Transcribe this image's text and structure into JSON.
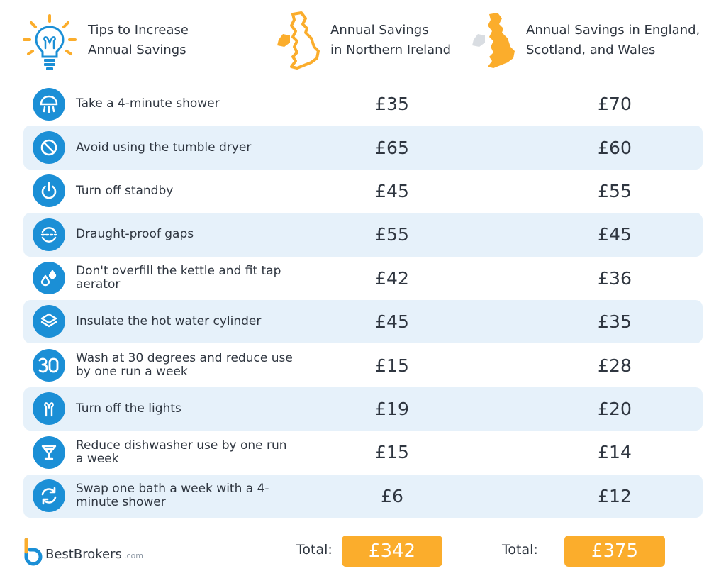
{
  "header": {
    "col1_line1": "Tips to Increase",
    "col1_line2": "Annual Savings",
    "col2_line1": "Annual Savings",
    "col2_line2": "in Northern Ireland",
    "col3_line1": "Annual Savings in England,",
    "col3_line2": "Scotland, and Wales"
  },
  "colors": {
    "accent_blue": "#1b8fd6",
    "row_alt": "#e6f1fa",
    "orange": "#fbad2c"
  },
  "rows": [
    {
      "icon": "shower-icon",
      "tip": "Take a 4-minute shower",
      "ni": "£35",
      "gb": "£70"
    },
    {
      "icon": "prohibited-icon",
      "tip": "Avoid using the tumble dryer",
      "ni": "£65",
      "gb": "£60"
    },
    {
      "icon": "power-icon",
      "tip": "Turn off standby",
      "ni": "£45",
      "gb": "£55"
    },
    {
      "icon": "draught-icon",
      "tip": "Draught-proof gaps",
      "ni": "£55",
      "gb": "£45"
    },
    {
      "icon": "droplets-icon",
      "tip": "Don't overfill the kettle and fit tap aerator",
      "ni": "£42",
      "gb": "£36"
    },
    {
      "icon": "layers-icon",
      "tip": "Insulate the hot water cylinder",
      "ni": "£45",
      "gb": "£35"
    },
    {
      "icon": "thirty-degrees-icon",
      "tip": "Wash at 30 degrees and reduce use by one run a week",
      "ni": "£15",
      "gb": "£28"
    },
    {
      "icon": "bulb-filament-icon",
      "tip": "Turn off the lights",
      "ni": "£19",
      "gb": "£20"
    },
    {
      "icon": "glass-icon",
      "tip": "Reduce dishwasher use by one run a week",
      "ni": "£15",
      "gb": "£14"
    },
    {
      "icon": "swap-arrows-icon",
      "tip": "Swap one bath a week with a 4-minute shower",
      "ni": "£6",
      "gb": "£12"
    }
  ],
  "totals": {
    "label": "Total:",
    "ni": "£342",
    "gb": "£375"
  },
  "brand": {
    "name": "BestBrokers",
    "tld": ".com"
  }
}
